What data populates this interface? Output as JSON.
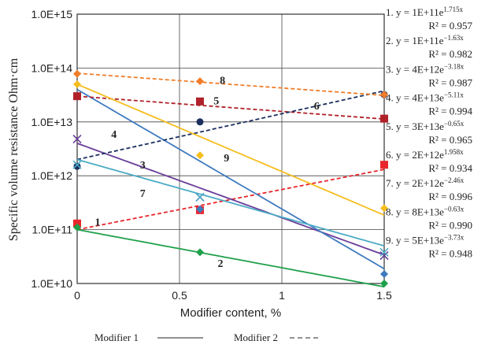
{
  "chart_data": {
    "type": "scatter",
    "xlabel": "Modifier content, %",
    "ylabel": "Specific volume resistance Ohm·cm",
    "x_ticks": [
      {
        "value": 0,
        "label": "0"
      },
      {
        "value": 0.5,
        "label": "0.5"
      },
      {
        "value": 1,
        "label": "1"
      },
      {
        "value": 1.5,
        "label": "1.5"
      }
    ],
    "y_ticks": [
      {
        "exp": 10,
        "label": "1.0E+10"
      },
      {
        "exp": 11,
        "label": "1.0E+11"
      },
      {
        "exp": 12,
        "label": "1.0E+12"
      },
      {
        "exp": 13,
        "label": "1.0E+13"
      },
      {
        "exp": 14,
        "label": "1.0E+14"
      },
      {
        "exp": 15,
        "label": "1.0E+15"
      }
    ],
    "xlim": [
      0,
      1.5
    ],
    "ylim": [
      10000000000.0,
      1000000000000000.0
    ],
    "y_scale": "log",
    "grid": true,
    "series": [
      {
        "label": "1",
        "color": "#e8262b",
        "modifier": 2,
        "marker": "square",
        "x": [
          0,
          0.6,
          1.5
        ],
        "y": [
          130000000000.0,
          230000000000.0,
          1600000000000.0
        ],
        "fit": [
          100000000000.0,
          1.715
        ],
        "label_x": 0.1,
        "label_y": 140000000000.0
      },
      {
        "label": "2",
        "color": "#1fa04a",
        "modifier": 1,
        "marker": "diamond",
        "x": [
          0,
          0.6,
          1.5
        ],
        "y": [
          110000000000.0,
          38000000000.0,
          10000000000.0
        ],
        "fit": [
          100000000000.0,
          -1.63
        ],
        "label_x": 0.7,
        "label_y": 24000000000.0
      },
      {
        "label": "3",
        "color": "#6a3d9a",
        "modifier": 1,
        "marker": "x",
        "x": [
          0,
          0.6,
          1.5
        ],
        "y": [
          4800000000000.0,
          400000000000.0,
          33000000000.0
        ],
        "fit": [
          4000000000000.0,
          -3.18
        ],
        "label_x": 0.32,
        "label_y": 1600000000000.0
      },
      {
        "label": "4",
        "color": "#3f7bbf",
        "modifier": 1,
        "marker": "diamond",
        "x": [
          0,
          0.6,
          1.5
        ],
        "y": [
          30000000000000.0,
          240000000000.0,
          15000000000.0
        ],
        "fit": [
          40000000000000.0,
          -5.11
        ],
        "label_x": 0.18,
        "label_y": 6000000000000.0
      },
      {
        "label": "5",
        "color": "#b0222a",
        "modifier": 2,
        "marker": "square",
        "x": [
          0,
          0.6,
          1.5
        ],
        "y": [
          30000000000000.0,
          24000000000000.0,
          11500000000000.0
        ],
        "fit": [
          30000000000000.0,
          -0.65
        ],
        "label_x": 0.68,
        "label_y": 25000000000000.0
      },
      {
        "label": "6",
        "color": "#1b2f5e",
        "modifier": 2,
        "marker": "circle",
        "x": [
          0,
          0.6,
          1.5
        ],
        "y": [
          1500000000000.0,
          10000000000000.0,
          32000000000000.0
        ],
        "fit": [
          2000000000000.0,
          1.958
        ],
        "label_x": 1.17,
        "label_y": 20000000000000.0
      },
      {
        "label": "7",
        "color": "#4bacc6",
        "modifier": 1,
        "marker": "x",
        "x": [
          0,
          0.6,
          1.5
        ],
        "y": [
          1600000000000.0,
          400000000000.0,
          38000000000.0
        ],
        "fit": [
          2000000000000.0,
          -2.46
        ],
        "label_x": 0.32,
        "label_y": 480000000000.0
      },
      {
        "label": "8",
        "color": "#f07d2a",
        "modifier": 2,
        "marker": "diamond",
        "x": [
          0,
          0.6,
          1.5
        ],
        "y": [
          78000000000000.0,
          57000000000000.0,
          32000000000000.0
        ],
        "fit": [
          80000000000000.0,
          -0.63
        ],
        "label_x": 0.71,
        "label_y": 60000000000000.0
      },
      {
        "label": "9",
        "color": "#f5bd1f",
        "modifier": 1,
        "marker": "diamond",
        "x": [
          0,
          0.6,
          1.5
        ],
        "y": [
          50000000000000.0,
          2400000000000.0,
          250000000000.0
        ],
        "fit": [
          50000000000000.0,
          -3.73
        ],
        "label_x": 0.73,
        "label_y": 2200000000000.0
      }
    ],
    "equations": [
      {
        "num": "1.",
        "a": "1E+11",
        "b": "1.715x",
        "r2": "R² = 0.957"
      },
      {
        "num": "2.",
        "a": "1E+11",
        "b": "−1.63x",
        "r2": "R² = 0.982"
      },
      {
        "num": "3.",
        "a": "4E+12",
        "b": "−3.18x",
        "r2": "R² = 0.987"
      },
      {
        "num": "4.",
        "a": "4E+13",
        "b": "−5.11x",
        "r2": "R² = 0.994"
      },
      {
        "num": "5.",
        "a": "3E+13",
        "b": "−0.65x",
        "r2": "R² = 0.965"
      },
      {
        "num": "6.",
        "a": "2E+12",
        "b": "1.958x",
        "r2": "R² = 0.934"
      },
      {
        "num": "7.",
        "a": "2E+12",
        "b": "−2.46x",
        "r2": "R² = 0.996"
      },
      {
        "num": "8.",
        "a": "8E+13",
        "b": "−0.63x",
        "r2": "R² = 0.990"
      },
      {
        "num": "9.",
        "a": "5E+13",
        "b": "−3.73x",
        "r2": "R² = 0.948"
      }
    ],
    "equation_prefix": "y = ",
    "equation_base": "e",
    "legend": [
      {
        "label": "Modifier  1",
        "style": "solid"
      },
      {
        "label": "Modifier 2",
        "style": "dashed"
      }
    ],
    "legend_position": "bottom"
  }
}
